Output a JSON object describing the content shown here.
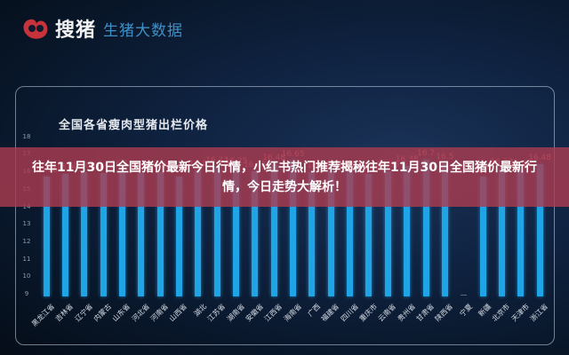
{
  "header": {
    "brand": "搜猪",
    "subtitle": "生猪大数据"
  },
  "banner": {
    "line1": "往年11月30日全国猪价最新今日行情，小红书热门推荐揭秘往年11月30日全国猪价最新行",
    "line2": "情，今日走势大解析！"
  },
  "colors": {
    "bar": "#1fa5e6",
    "value_label": "#e07a86",
    "banner": "#aa3c50",
    "brand_red": "#d0343c"
  },
  "chart_data": {
    "type": "bar",
    "title": "全国各省瘦肉型猪出栏价格",
    "xlabel": "",
    "ylabel": "",
    "ylim": [
      9,
      18
    ],
    "yticks": [
      18,
      17,
      16,
      15,
      14,
      13,
      12,
      11,
      10,
      9
    ],
    "grid": false,
    "categories": [
      "黑龙江省",
      "吉林省",
      "辽宁省",
      "内蒙古",
      "山东省",
      "河北省",
      "河南省",
      "山西省",
      "湖北",
      "江苏省",
      "湖南省",
      "安徽省",
      "江西省",
      "海南省",
      "广西",
      "福建省",
      "四川省",
      "重庆市",
      "云南省",
      "贵州省",
      "甘肃省",
      "陕西省",
      "宁夏",
      "新疆",
      "北京市",
      "天津市",
      "浙江省"
    ],
    "values": [
      15.76,
      15.9,
      16.02,
      15.95,
      16.11,
      15.96,
      16.02,
      15.75,
      16.1,
      16.33,
      16.25,
      16.05,
      16.48,
      16.65,
      16.0,
      16.06,
      16.07,
      15.89,
      16.05,
      16.38,
      16.7,
      16.5,
      null,
      15.77,
      16.23,
      16.12,
      16.48
    ]
  }
}
